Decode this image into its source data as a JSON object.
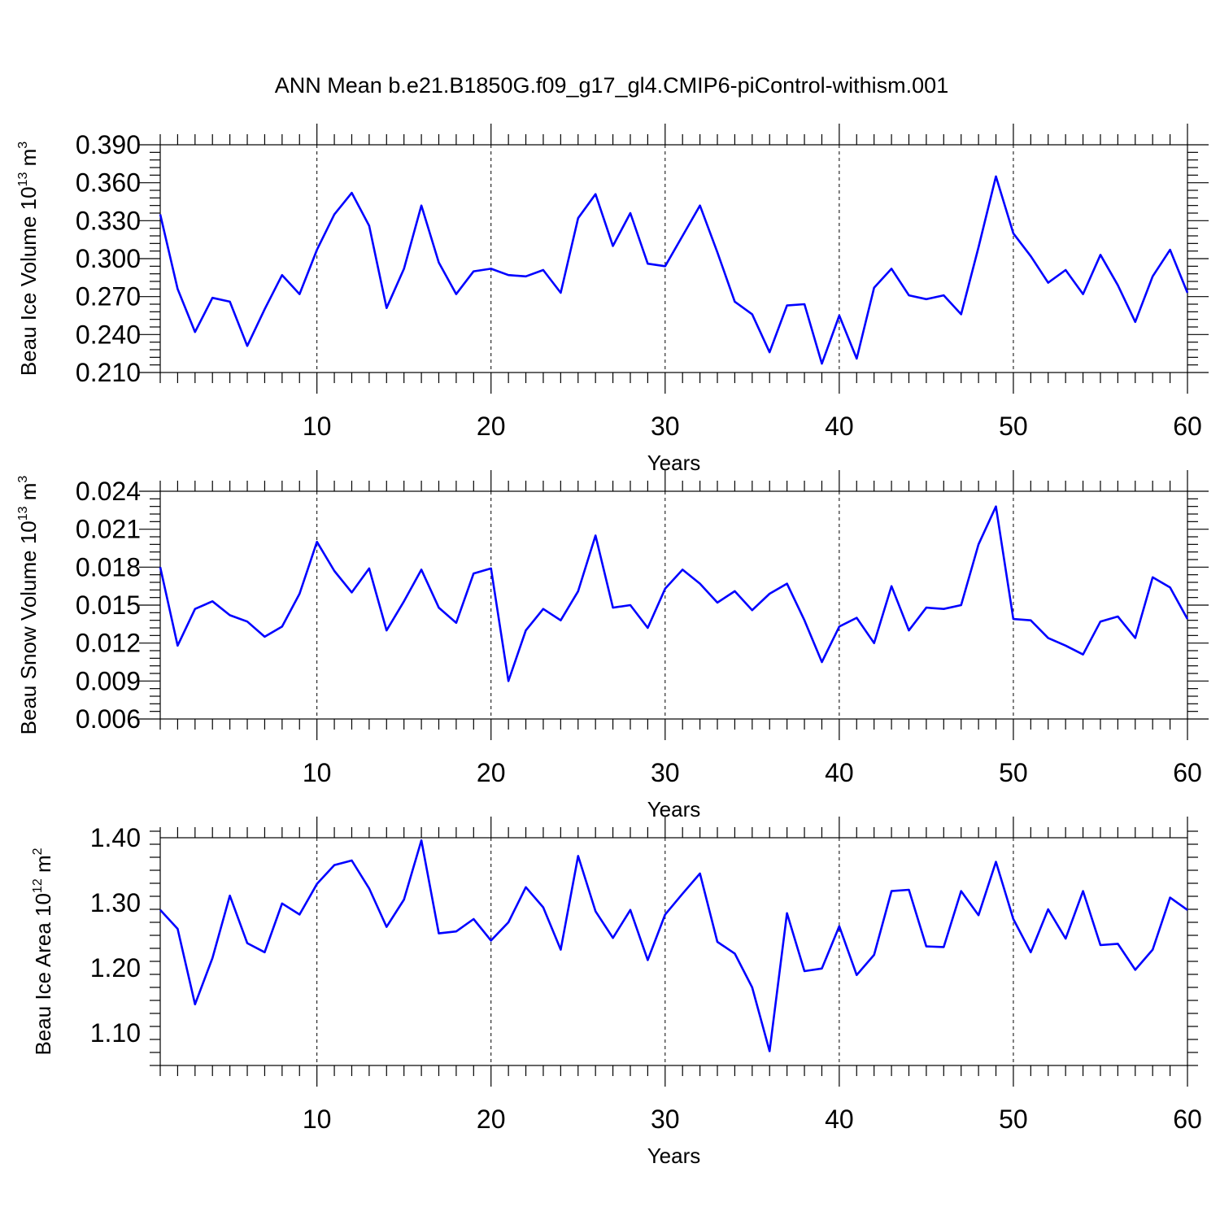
{
  "title": "ANN Mean b.e21.B1850G.f09_g17_gl4.CMIP6-piControl-withism.001",
  "colors": {
    "line": "#0000ff",
    "axis": "#000000"
  },
  "chart_data": [
    {
      "type": "line",
      "ylabel": {
        "base": "Beau Ice Volume 10",
        "exp": "13",
        "unit": " m",
        "unit_exp": "3"
      },
      "xlabel": "Years",
      "xlim": [
        1,
        60
      ],
      "ylim": [
        0.21,
        0.39
      ],
      "xticks": [
        10,
        20,
        30,
        40,
        50,
        60
      ],
      "yticks": [
        0.21,
        0.24,
        0.27,
        0.3,
        0.33,
        0.36,
        0.39
      ],
      "ytick_labels": [
        "0.210",
        "0.240",
        "0.270",
        "0.300",
        "0.330",
        "0.360",
        "0.390"
      ],
      "grid": "dashed vertical at major x ticks",
      "x": [
        1,
        2,
        3,
        4,
        5,
        6,
        7,
        8,
        9,
        10,
        11,
        12,
        13,
        14,
        15,
        16,
        17,
        18,
        19,
        20,
        21,
        22,
        23,
        24,
        25,
        26,
        27,
        28,
        29,
        30,
        31,
        32,
        33,
        34,
        35,
        36,
        37,
        38,
        39,
        40,
        41,
        42,
        43,
        44,
        45,
        46,
        47,
        48,
        49,
        50,
        51,
        52,
        53,
        54,
        55,
        56,
        57,
        58,
        59,
        60
      ],
      "values": [
        0.335,
        0.276,
        0.242,
        0.269,
        0.266,
        0.231,
        0.26,
        0.287,
        0.272,
        0.307,
        0.335,
        0.352,
        0.326,
        0.261,
        0.292,
        0.342,
        0.297,
        0.272,
        0.29,
        0.292,
        0.287,
        0.286,
        0.291,
        0.273,
        0.332,
        0.351,
        0.31,
        0.336,
        0.296,
        0.294,
        0.318,
        0.342,
        0.305,
        0.266,
        0.256,
        0.226,
        0.263,
        0.264,
        0.217,
        0.255,
        0.221,
        0.277,
        0.292,
        0.271,
        0.268,
        0.271,
        0.256,
        0.309,
        0.365,
        0.32,
        0.302,
        0.281,
        0.291,
        0.272,
        0.303,
        0.279,
        0.25,
        0.286,
        0.307,
        0.273
      ]
    },
    {
      "type": "line",
      "ylabel": {
        "base": "Beau Snow Volume 10",
        "exp": "13",
        "unit": " m",
        "unit_exp": "3"
      },
      "xlabel": "Years",
      "xlim": [
        1,
        60
      ],
      "ylim": [
        0.006,
        0.024
      ],
      "xticks": [
        10,
        20,
        30,
        40,
        50,
        60
      ],
      "yticks": [
        0.006,
        0.009,
        0.012,
        0.015,
        0.018,
        0.021,
        0.024
      ],
      "ytick_labels": [
        "0.006",
        "0.009",
        "0.012",
        "0.015",
        "0.018",
        "0.021",
        "0.024"
      ],
      "grid": "dashed vertical at major x ticks",
      "x": [
        1,
        2,
        3,
        4,
        5,
        6,
        7,
        8,
        9,
        10,
        11,
        12,
        13,
        14,
        15,
        16,
        17,
        18,
        19,
        20,
        21,
        22,
        23,
        24,
        25,
        26,
        27,
        28,
        29,
        30,
        31,
        32,
        33,
        34,
        35,
        36,
        37,
        38,
        39,
        40,
        41,
        42,
        43,
        44,
        45,
        46,
        47,
        48,
        49,
        50,
        51,
        52,
        53,
        54,
        55,
        56,
        57,
        58,
        59,
        60
      ],
      "values": [
        0.018,
        0.0118,
        0.0147,
        0.0153,
        0.0142,
        0.0137,
        0.0125,
        0.0133,
        0.0159,
        0.02,
        0.0177,
        0.016,
        0.0179,
        0.013,
        0.0153,
        0.0178,
        0.0148,
        0.0136,
        0.0175,
        0.0179,
        0.009,
        0.013,
        0.0147,
        0.0138,
        0.0161,
        0.0205,
        0.0148,
        0.015,
        0.0132,
        0.0163,
        0.0178,
        0.0167,
        0.0152,
        0.0161,
        0.0146,
        0.0159,
        0.0167,
        0.0138,
        0.0105,
        0.0133,
        0.014,
        0.012,
        0.0165,
        0.013,
        0.0148,
        0.0147,
        0.015,
        0.0198,
        0.0228,
        0.0139,
        0.0138,
        0.0124,
        0.0118,
        0.0111,
        0.0137,
        0.0141,
        0.0124,
        0.0172,
        0.0164,
        0.0139
      ]
    },
    {
      "type": "line",
      "ylabel": {
        "base": "Beau Ice Area 10",
        "exp": "12",
        "unit": " m",
        "unit_exp": "2"
      },
      "xlabel": "Years",
      "xlim": [
        1,
        60
      ],
      "ylim": [
        1.05,
        1.4
      ],
      "xticks": [
        10,
        20,
        30,
        40,
        50,
        60
      ],
      "yticks": [
        1.1,
        1.2,
        1.3,
        1.4
      ],
      "ytick_labels": [
        "1.10",
        "1.20",
        "1.30",
        "1.40"
      ],
      "grid": "dashed vertical at major x ticks",
      "x": [
        1,
        2,
        3,
        4,
        5,
        6,
        7,
        8,
        9,
        10,
        11,
        12,
        13,
        14,
        15,
        16,
        17,
        18,
        19,
        20,
        21,
        22,
        23,
        24,
        25,
        26,
        27,
        28,
        29,
        30,
        31,
        32,
        33,
        34,
        35,
        36,
        37,
        38,
        39,
        40,
        41,
        42,
        43,
        44,
        45,
        46,
        47,
        48,
        49,
        50,
        51,
        52,
        53,
        54,
        55,
        56,
        57,
        58,
        59,
        60
      ],
      "values": [
        1.289,
        1.26,
        1.144,
        1.215,
        1.311,
        1.238,
        1.224,
        1.299,
        1.282,
        1.329,
        1.358,
        1.365,
        1.322,
        1.263,
        1.305,
        1.396,
        1.253,
        1.256,
        1.275,
        1.242,
        1.27,
        1.324,
        1.293,
        1.228,
        1.372,
        1.287,
        1.246,
        1.289,
        1.212,
        1.282,
        1.314,
        1.345,
        1.24,
        1.222,
        1.17,
        1.072,
        1.284,
        1.195,
        1.199,
        1.264,
        1.189,
        1.22,
        1.318,
        1.32,
        1.233,
        1.232,
        1.318,
        1.281,
        1.363,
        1.275,
        1.224,
        1.29,
        1.245,
        1.318,
        1.235,
        1.237,
        1.197,
        1.228,
        1.308,
        1.289
      ]
    }
  ]
}
